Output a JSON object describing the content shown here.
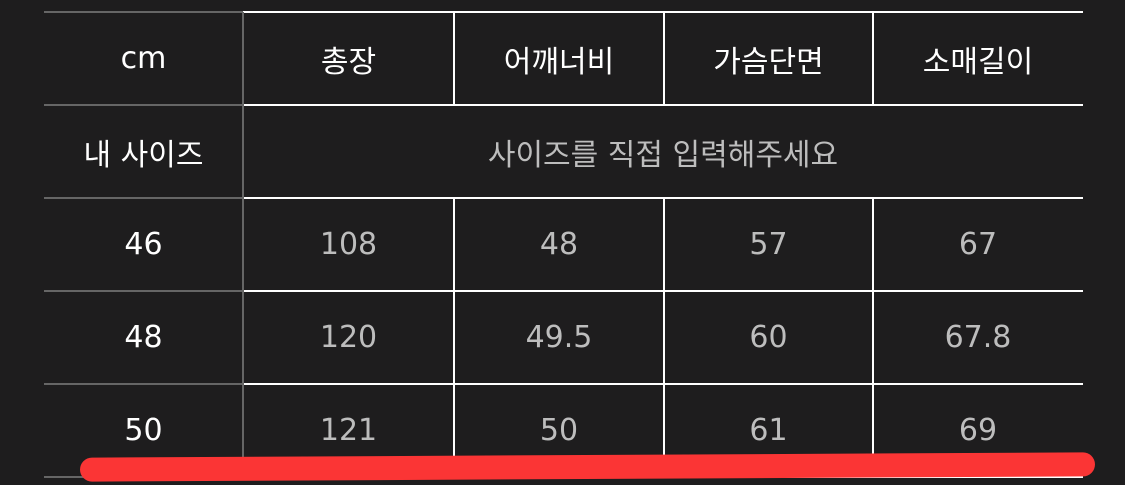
{
  "table": {
    "corner": "cm",
    "headers": [
      "총장",
      "어깨너비",
      "가슴단면",
      "소매길이"
    ],
    "my_size_label": "내 사이즈",
    "my_size_placeholder": "사이즈를 직접 입력해주세요",
    "rows": [
      {
        "size": "46",
        "values": [
          "108",
          "48",
          "57",
          "67"
        ]
      },
      {
        "size": "48",
        "values": [
          "120",
          "49.5",
          "60",
          "67.8"
        ]
      },
      {
        "size": "50",
        "values": [
          "121",
          "50",
          "61",
          "69"
        ]
      }
    ]
  },
  "colors": {
    "background": "#1e1d1e",
    "grid_line": "#ffffff",
    "label_line": "#666666",
    "highlight": "#fb3535"
  }
}
